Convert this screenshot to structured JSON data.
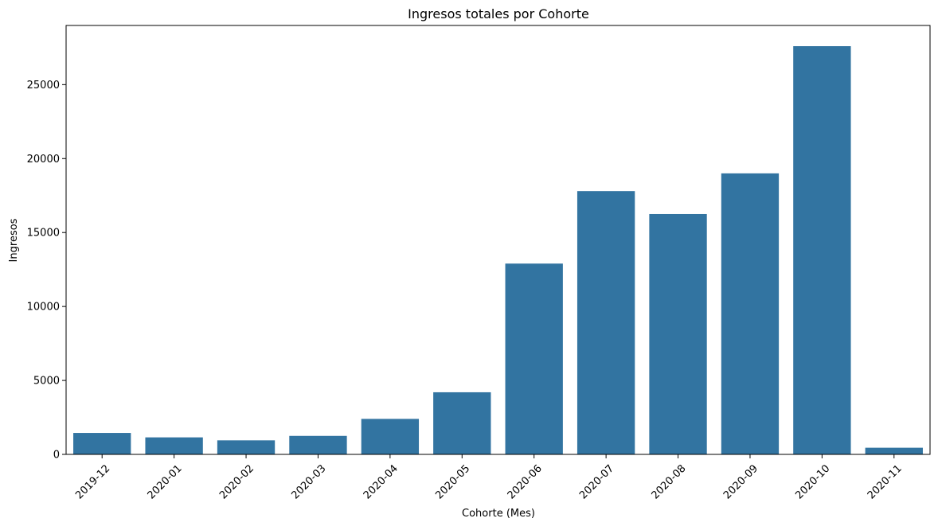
{
  "chart_data": {
    "type": "bar",
    "title": "Ingresos totales por Cohorte",
    "xlabel": "Cohorte (Mes)",
    "ylabel": "Ingresos",
    "categories": [
      "2019-12",
      "2020-01",
      "2020-02",
      "2020-03",
      "2020-04",
      "2020-05",
      "2020-06",
      "2020-07",
      "2020-08",
      "2020-09",
      "2020-10",
      "2020-11"
    ],
    "values": [
      1450,
      1150,
      950,
      1250,
      2400,
      4200,
      12900,
      17800,
      16250,
      19000,
      27600,
      450
    ],
    "ylim": [
      0,
      29000
    ],
    "yticks": [
      0,
      5000,
      10000,
      15000,
      20000,
      25000
    ],
    "ytick_labels": [
      "0",
      "5000",
      "10000",
      "15000",
      "20000",
      "25000"
    ],
    "xtick_rotation": 45,
    "bar_color": "#3274a1",
    "grid": false,
    "legend": "none"
  }
}
